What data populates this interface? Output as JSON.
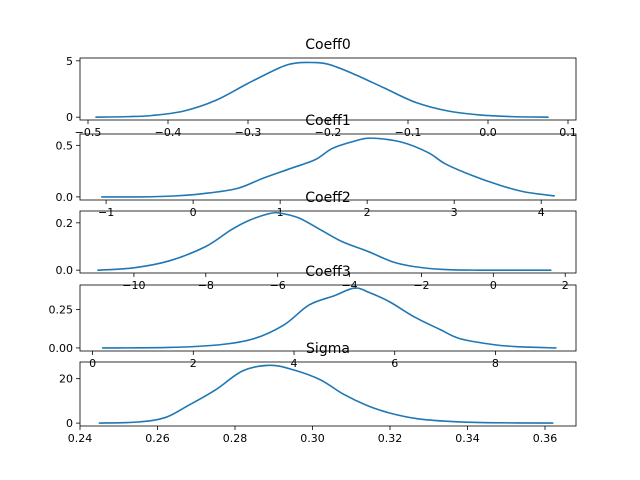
{
  "figure": {
    "line_color": "#1f77b4",
    "background": "#ffffff"
  },
  "chart_data": [
    {
      "type": "line",
      "title": "Coeff0",
      "xlabel": "",
      "ylabel": "",
      "grid": false,
      "xlim": [
        -0.51,
        0.11
      ],
      "ylim": [
        -0.25,
        5.25
      ],
      "xticks": [
        -0.5,
        -0.4,
        -0.3,
        -0.2,
        -0.1,
        0.0,
        0.1
      ],
      "xtick_labels": [
        "−0.5",
        "−0.4",
        "−0.3",
        "−0.2",
        "−0.1",
        "0.0",
        "0.1"
      ],
      "yticks": [
        0,
        5
      ],
      "ytick_labels": [
        "0",
        "5"
      ],
      "series": [
        {
          "x": [
            -0.49,
            -0.45,
            -0.42,
            -0.38,
            -0.34,
            -0.3,
            -0.26,
            -0.24,
            -0.22,
            -0.2,
            -0.17,
            -0.13,
            -0.09,
            -0.05,
            -0.01,
            0.03,
            0.075
          ],
          "y": [
            0.0,
            0.05,
            0.15,
            0.55,
            1.5,
            3.0,
            4.4,
            4.8,
            4.85,
            4.7,
            3.9,
            2.6,
            1.3,
            0.55,
            0.2,
            0.05,
            0.0
          ]
        }
      ]
    },
    {
      "type": "line",
      "title": "Coeff1",
      "xlabel": "",
      "ylabel": "",
      "grid": false,
      "xlim": [
        -1.3,
        4.4
      ],
      "ylim": [
        -0.03,
        0.61
      ],
      "xticks": [
        -1,
        0,
        1,
        2,
        3,
        4
      ],
      "xtick_labels": [
        "−1",
        "0",
        "1",
        "2",
        "3",
        "4"
      ],
      "yticks": [
        0.0,
        0.5
      ],
      "ytick_labels": [
        "0.0",
        "0.5"
      ],
      "series": [
        {
          "x": [
            -1.05,
            -0.6,
            -0.2,
            0.1,
            0.5,
            0.8,
            1.1,
            1.4,
            1.6,
            1.85,
            2.05,
            2.4,
            2.7,
            2.9,
            3.2,
            3.5,
            3.8,
            4.15
          ],
          "y": [
            0.0,
            0.0,
            0.01,
            0.03,
            0.08,
            0.18,
            0.27,
            0.36,
            0.47,
            0.54,
            0.57,
            0.53,
            0.43,
            0.32,
            0.21,
            0.12,
            0.05,
            0.01
          ]
        }
      ]
    },
    {
      "type": "line",
      "title": "Coeff2",
      "xlabel": "",
      "ylabel": "",
      "grid": false,
      "xlim": [
        -11.5,
        2.3
      ],
      "ylim": [
        -0.012,
        0.25
      ],
      "xticks": [
        -10,
        -8,
        -6,
        -4,
        -2,
        0,
        2
      ],
      "xtick_labels": [
        "−10",
        "−8",
        "−6",
        "−4",
        "−2",
        "0",
        "2"
      ],
      "yticks": [
        0.0,
        0.2
      ],
      "ytick_labels": [
        "0.0",
        "0.2"
      ],
      "series": [
        {
          "x": [
            -11.0,
            -10.0,
            -9.0,
            -8.0,
            -7.3,
            -6.8,
            -6.2,
            -5.9,
            -5.4,
            -4.8,
            -4.2,
            -3.5,
            -2.8,
            -2.2,
            -1.4,
            -0.4,
            1.6
          ],
          "y": [
            0.0,
            0.01,
            0.04,
            0.1,
            0.17,
            0.21,
            0.24,
            0.24,
            0.22,
            0.17,
            0.12,
            0.08,
            0.035,
            0.015,
            0.003,
            0.0,
            0.0
          ]
        }
      ]
    },
    {
      "type": "line",
      "title": "Coeff3",
      "xlabel": "",
      "ylabel": "",
      "grid": false,
      "xlim": [
        -0.25,
        9.6
      ],
      "ylim": [
        -0.02,
        0.41
      ],
      "xticks": [
        0,
        2,
        4,
        6,
        8
      ],
      "xtick_labels": [
        "0",
        "2",
        "4",
        "6",
        "8"
      ],
      "yticks": [
        0.0,
        0.25
      ],
      "ytick_labels": [
        "0.00",
        "0.25"
      ],
      "series": [
        {
          "x": [
            0.2,
            1.5,
            2.5,
            3.2,
            3.8,
            4.3,
            4.8,
            5.2,
            5.5,
            5.9,
            6.4,
            6.9,
            7.3,
            8.0,
            8.5,
            9.2
          ],
          "y": [
            0.0,
            0.003,
            0.02,
            0.06,
            0.15,
            0.28,
            0.34,
            0.39,
            0.36,
            0.3,
            0.2,
            0.12,
            0.06,
            0.02,
            0.007,
            0.0
          ]
        }
      ]
    },
    {
      "type": "line",
      "title": "Sigma",
      "xlabel": "",
      "ylabel": "",
      "grid": false,
      "xlim": [
        0.24,
        0.368
      ],
      "ylim": [
        -1.3,
        27.5
      ],
      "xticks": [
        0.24,
        0.26,
        0.28,
        0.3,
        0.32,
        0.34,
        0.36
      ],
      "xtick_labels": [
        "0.24",
        "0.26",
        "0.28",
        "0.30",
        "0.32",
        "0.34",
        "0.36"
      ],
      "yticks": [
        0,
        20
      ],
      "ytick_labels": [
        "0",
        "20"
      ],
      "series": [
        {
          "x": [
            0.245,
            0.255,
            0.262,
            0.268,
            0.275,
            0.282,
            0.289,
            0.295,
            0.302,
            0.308,
            0.314,
            0.32,
            0.327,
            0.335,
            0.345,
            0.362
          ],
          "y": [
            0.0,
            0.5,
            2.5,
            8.0,
            15.0,
            23.5,
            26.0,
            24.0,
            19.5,
            13.0,
            8.0,
            4.5,
            2.0,
            0.8,
            0.2,
            0.0
          ]
        }
      ]
    }
  ]
}
